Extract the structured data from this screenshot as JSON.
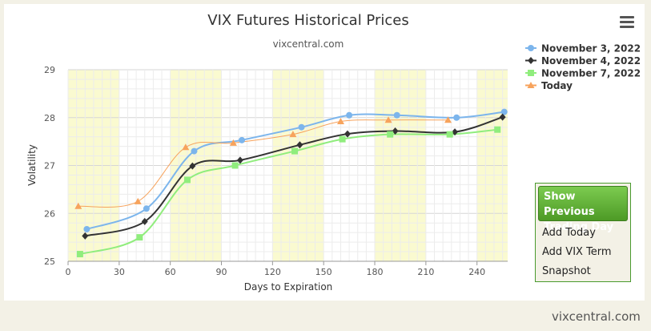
{
  "colors": {
    "background": "#f3f1e6",
    "band": "#fafad0",
    "grid": "#e0e0e0",
    "nov3": "#7cb5ec",
    "nov4": "#333333",
    "nov7": "#90ed7d",
    "today": "#f7a35c",
    "button": "#5aa832"
  },
  "menu_icon": "hamburger-menu-icon",
  "sidebar": {
    "primary_label": "Show Previous Trading Day",
    "items": [
      "Add Today",
      "Add VIX Term",
      "Snapshot"
    ]
  },
  "watermark": "vixcentral.com",
  "chart_data": {
    "type": "line",
    "title": "VIX Futures Historical Prices",
    "subtitle": "vixcentral.com",
    "xlabel": "Days to Expiration",
    "ylabel": "Volatility",
    "xlim": [
      0,
      258
    ],
    "ylim": [
      25,
      29
    ],
    "xticks": [
      0,
      30,
      60,
      90,
      120,
      150,
      180,
      210,
      240
    ],
    "yticks": [
      25,
      26,
      27,
      28,
      29
    ],
    "bands": [
      [
        0,
        30
      ],
      [
        60,
        90
      ],
      [
        120,
        150
      ],
      [
        180,
        210
      ],
      [
        240,
        258
      ]
    ],
    "legend_position": "top-right",
    "grid": true,
    "series": [
      {
        "name": "November 3, 2022",
        "color": "#7cb5ec",
        "marker": "circle",
        "x": [
          11,
          46,
          74,
          102,
          137,
          165,
          193,
          228,
          256
        ],
        "y": [
          25.67,
          26.1,
          27.3,
          27.53,
          27.8,
          28.05,
          28.05,
          28.0,
          28.12
        ]
      },
      {
        "name": "November 4, 2022",
        "color": "#333333",
        "marker": "diamond",
        "x": [
          10,
          45,
          73,
          101,
          136,
          164,
          192,
          227,
          255
        ],
        "y": [
          25.53,
          25.83,
          26.99,
          27.11,
          27.43,
          27.66,
          27.72,
          27.7,
          28.01
        ]
      },
      {
        "name": "November 7, 2022",
        "color": "#90ed7d",
        "marker": "square",
        "x": [
          7,
          42,
          70,
          98,
          133,
          161,
          189,
          224,
          252
        ],
        "y": [
          25.15,
          25.5,
          26.7,
          27.0,
          27.3,
          27.55,
          27.65,
          27.65,
          27.75
        ]
      },
      {
        "name": "Today",
        "color": "#f7a35c",
        "marker": "triangle",
        "x": [
          6,
          41,
          69,
          97,
          132,
          160,
          188,
          223
        ],
        "y": [
          26.15,
          26.25,
          27.38,
          27.47,
          27.65,
          27.92,
          27.95,
          27.95
        ]
      }
    ]
  }
}
